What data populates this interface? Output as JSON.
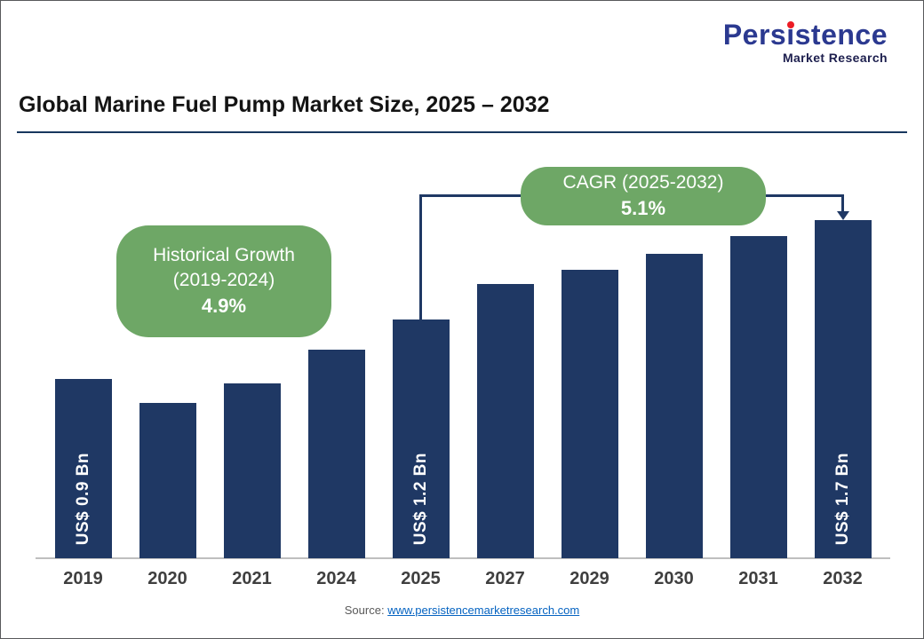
{
  "logo": {
    "part1": "Pers",
    "accent_i": "i",
    "part2": "stence",
    "subtitle": "Market Research"
  },
  "title": "Global Marine Fuel Pump Market Size, 2025 – 2032",
  "callouts": {
    "historical": {
      "line1": "Historical Growth",
      "line2": "(2019-2024)",
      "value": "4.9%"
    },
    "cagr": {
      "line1": "CAGR (2025-2032)",
      "value": "5.1%"
    }
  },
  "source": {
    "label": "Source:",
    "link": "www.persistencemarketresearch.com"
  },
  "colors": {
    "bar": "#1F3864",
    "green": "#6EA766",
    "bracket": "#1F3864",
    "logo_blue": "#2B3990",
    "logo_red": "#EC1C24",
    "link": "#0563C1"
  },
  "chart_data": {
    "type": "bar",
    "title": "Global Marine Fuel Pump Market Size, 2025 – 2032",
    "categories": [
      "2019",
      "2020",
      "2021",
      "2024",
      "2025",
      "2027",
      "2029",
      "2030",
      "2031",
      "2032"
    ],
    "values": [
      0.9,
      0.78,
      0.88,
      1.05,
      1.2,
      1.38,
      1.45,
      1.53,
      1.62,
      1.7
    ],
    "unit": "US$ Bn",
    "bar_labels": {
      "2019": "US$ 0.9 Bn",
      "2025": "US$ 1.2 Bn",
      "2032": "US$ 1.7 Bn"
    },
    "ylim": [
      0,
      2
    ],
    "grid": false,
    "legend": "none",
    "annotations": [
      "Historical Growth (2019-2024) 4.9%",
      "CAGR (2025-2032) 5.1%"
    ]
  }
}
